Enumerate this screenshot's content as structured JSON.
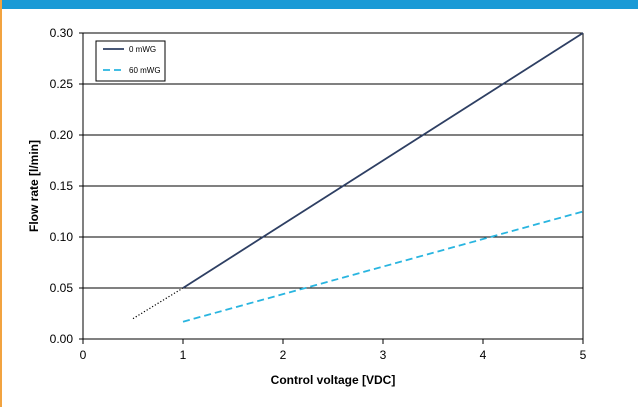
{
  "colors": {
    "top_bar": "#1a9ad6",
    "left_bar": "#f2a340",
    "grid": "#000000",
    "plot_bg": "#ffffff"
  },
  "chart_data": {
    "type": "line",
    "xlabel": "Control voltage [VDC]",
    "ylabel": "Flow rate [l/min]",
    "xlim": [
      0,
      5
    ],
    "ylim": [
      0,
      0.3
    ],
    "x_ticks": [
      "0",
      "1",
      "2",
      "3",
      "4",
      "5"
    ],
    "y_ticks": [
      "0.00",
      "0.05",
      "0.10",
      "0.15",
      "0.20",
      "0.25",
      "0.30"
    ],
    "grid": "horizontal",
    "legend_position": "top-left",
    "series": [
      {
        "name": "0 mWG",
        "color": "#2e3f63",
        "dash": "solid",
        "points": [
          [
            1,
            0.05
          ],
          [
            5,
            0.3
          ]
        ]
      },
      {
        "name": "60 mWG",
        "color": "#29b5e0",
        "dash": "dashed",
        "points": [
          [
            1,
            0.017
          ],
          [
            5,
            0.125
          ]
        ]
      }
    ],
    "extrapolation": {
      "color": "#000000",
      "dash": "dotted",
      "points": [
        [
          0.5,
          0.02
        ],
        [
          1,
          0.05
        ]
      ]
    }
  }
}
